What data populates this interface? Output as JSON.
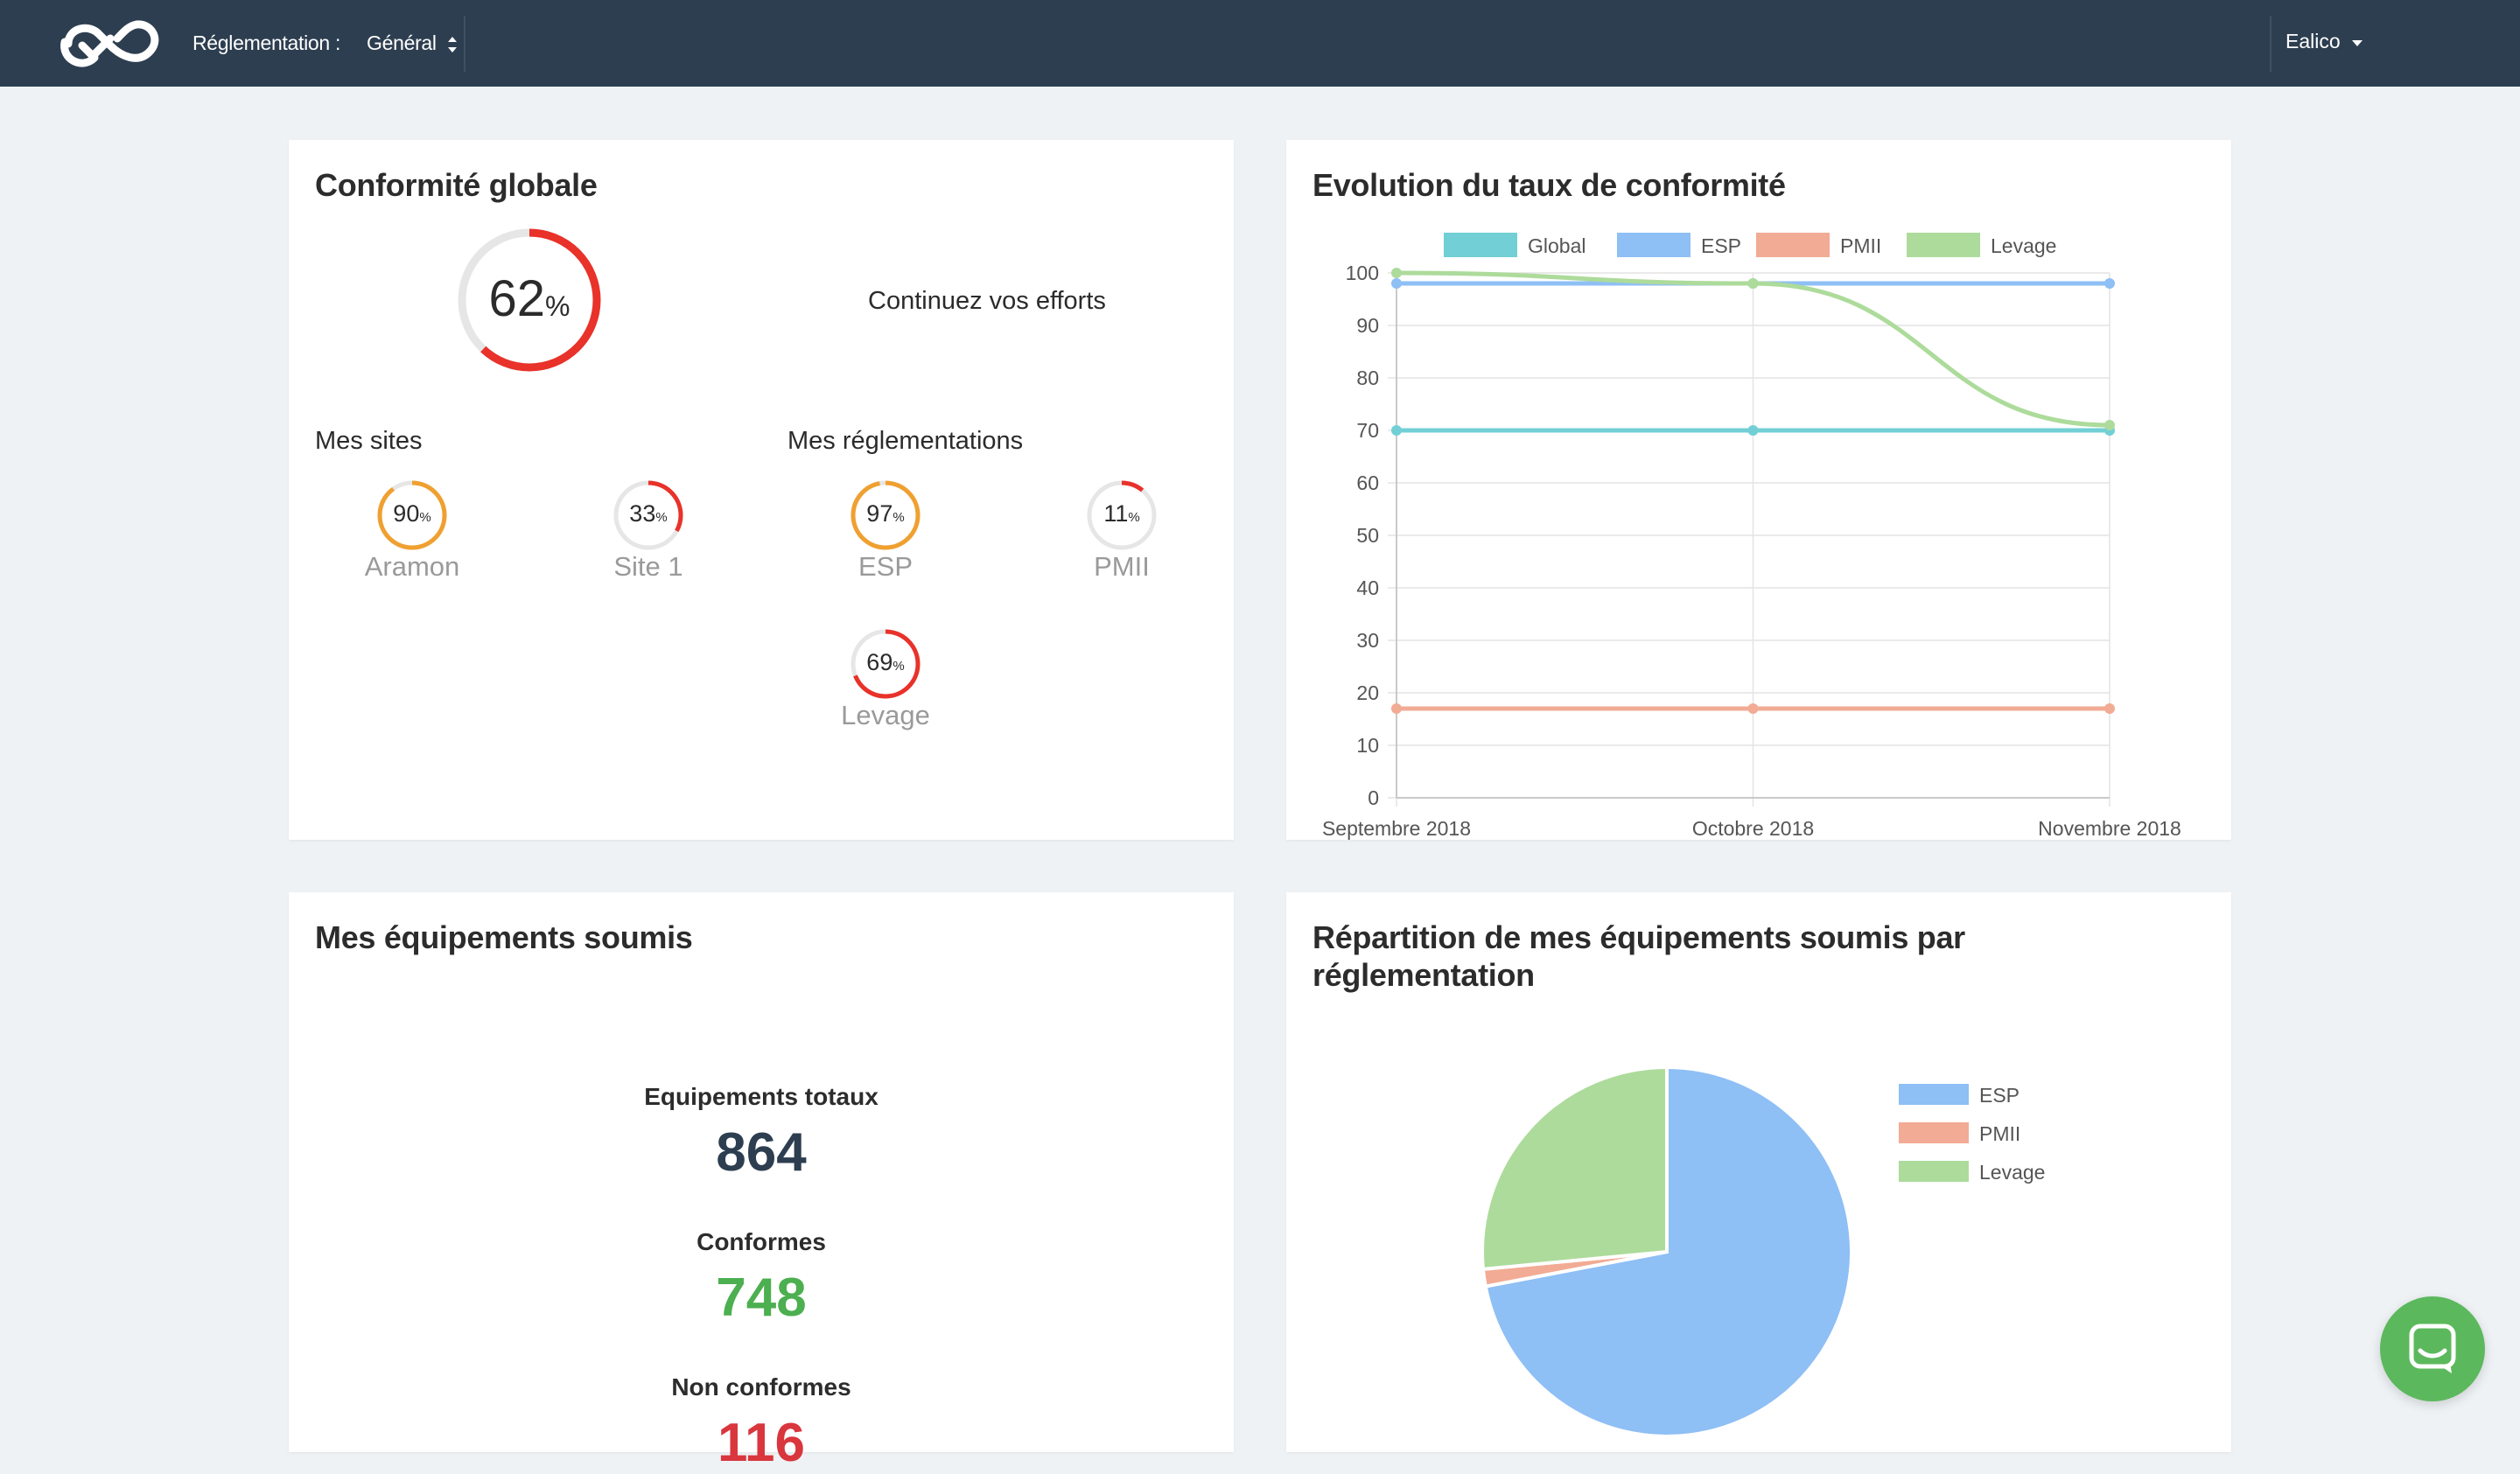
{
  "navbar": {
    "logo": "eye-check-logo",
    "regulation_label": "Réglementation :",
    "regulation_value": "Général",
    "user_name": "Ealico"
  },
  "conformite": {
    "title": "Conformité globale",
    "global_percent": 62,
    "global_value": "62",
    "percent_sign": "%",
    "message": "Continuez vos efforts",
    "sites_label": "Mes sites",
    "regs_label": "Mes réglementations",
    "sites": [
      {
        "name": "Aramon",
        "value": "90",
        "percent": 90,
        "color": "#f0a030"
      },
      {
        "name": "Site 1",
        "value": "33",
        "percent": 33,
        "color": "#e8322a"
      }
    ],
    "regulations": [
      {
        "name": "ESP",
        "value": "97",
        "percent": 97,
        "color": "#f0a030"
      },
      {
        "name": "PMII",
        "value": "11",
        "percent": 11,
        "color": "#e8322a"
      },
      {
        "name": "Levage",
        "value": "69",
        "percent": 69,
        "color": "#e8322a"
      }
    ]
  },
  "evolution": {
    "title": "Evolution du taux de conformité"
  },
  "equipements": {
    "title": "Mes équipements soumis",
    "total_label": "Equipements totaux",
    "total_value": "864",
    "conformes_label": "Conformes",
    "conformes_value": "748",
    "non_conformes_label": "Non conformes",
    "non_conformes_value": "116",
    "colors": {
      "total": "#2d3e50",
      "conformes": "#4caf50",
      "non_conformes": "#d9363e"
    }
  },
  "repartition": {
    "title_line1": "Répartition de mes équipements soumis par",
    "title_line2": "réglementation"
  },
  "chart_data": [
    {
      "type": "line",
      "title": "Evolution du taux de conformité",
      "categories": [
        "Septembre 2018",
        "Octobre 2018",
        "Novembre 2018"
      ],
      "ylim": [
        0,
        100
      ],
      "yticks": [
        0,
        10,
        20,
        30,
        40,
        50,
        60,
        70,
        80,
        90,
        100
      ],
      "grid": true,
      "legend": "top",
      "series": [
        {
          "name": "Global",
          "color": "#72cfd6",
          "values": [
            70,
            70,
            70
          ]
        },
        {
          "name": "ESP",
          "color": "#8ebff5",
          "values": [
            98,
            98,
            98
          ]
        },
        {
          "name": "PMII",
          "color": "#f2ab94",
          "values": [
            17,
            17,
            17
          ]
        },
        {
          "name": "Levage",
          "color": "#addb9b",
          "values": [
            100,
            98,
            71
          ]
        }
      ]
    },
    {
      "type": "pie",
      "title": "Répartition de mes équipements soumis par réglementation",
      "legend": "right",
      "slices": [
        {
          "name": "ESP",
          "color": "#8ebff5",
          "value": 72
        },
        {
          "name": "PMII",
          "color": "#f2ab94",
          "value": 1.5
        },
        {
          "name": "Levage",
          "color": "#addb9b",
          "value": 26.5
        }
      ]
    }
  ],
  "chat": {
    "icon": "chat-bubble-icon"
  }
}
